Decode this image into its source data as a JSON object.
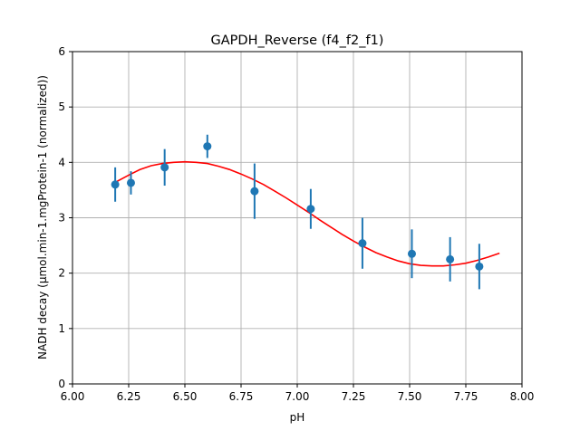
{
  "chart_data": {
    "type": "scatter",
    "title": "GAPDH_Reverse (f4_f2_f1)",
    "xlabel": "pH",
    "ylabel": "NADH decay (µmol.min-1.mgProtein-1 (normalized))",
    "xlim": [
      6.0,
      8.0
    ],
    "ylim": [
      0,
      6
    ],
    "x_ticks": [
      "6.00",
      "6.25",
      "6.50",
      "6.75",
      "7.00",
      "7.25",
      "7.50",
      "7.75",
      "8.00"
    ],
    "y_ticks": [
      "0",
      "1",
      "2",
      "3",
      "4",
      "5",
      "6"
    ],
    "grid": true,
    "series": [
      {
        "kind": "scatter_errorbar",
        "color": "#1f77b4",
        "x": [
          6.19,
          6.26,
          6.41,
          6.6,
          6.81,
          7.06,
          7.29,
          7.51,
          7.68,
          7.81
        ],
        "y": [
          3.6,
          3.63,
          3.91,
          4.29,
          3.48,
          3.16,
          2.54,
          2.35,
          2.25,
          2.12
        ],
        "err": [
          0.31,
          0.21,
          0.33,
          0.21,
          0.5,
          0.36,
          0.46,
          0.44,
          0.4,
          0.41
        ]
      },
      {
        "kind": "fit_line",
        "color": "#ff0000",
        "x": [
          6.19,
          6.25,
          6.3,
          6.35,
          6.4,
          6.45,
          6.5,
          6.55,
          6.6,
          6.65,
          6.7,
          6.75,
          6.8,
          6.85,
          6.9,
          6.95,
          7.0,
          7.05,
          7.1,
          7.15,
          7.2,
          7.25,
          7.3,
          7.35,
          7.4,
          7.45,
          7.5,
          7.55,
          7.6,
          7.65,
          7.7,
          7.75,
          7.8,
          7.85,
          7.9
        ],
        "y": [
          3.64,
          3.77,
          3.87,
          3.94,
          3.98,
          4.0,
          4.01,
          4.0,
          3.98,
          3.93,
          3.87,
          3.79,
          3.7,
          3.6,
          3.48,
          3.36,
          3.23,
          3.1,
          2.96,
          2.83,
          2.7,
          2.58,
          2.47,
          2.37,
          2.29,
          2.22,
          2.17,
          2.14,
          2.13,
          2.13,
          2.15,
          2.18,
          2.23,
          2.29,
          2.36
        ]
      }
    ]
  }
}
